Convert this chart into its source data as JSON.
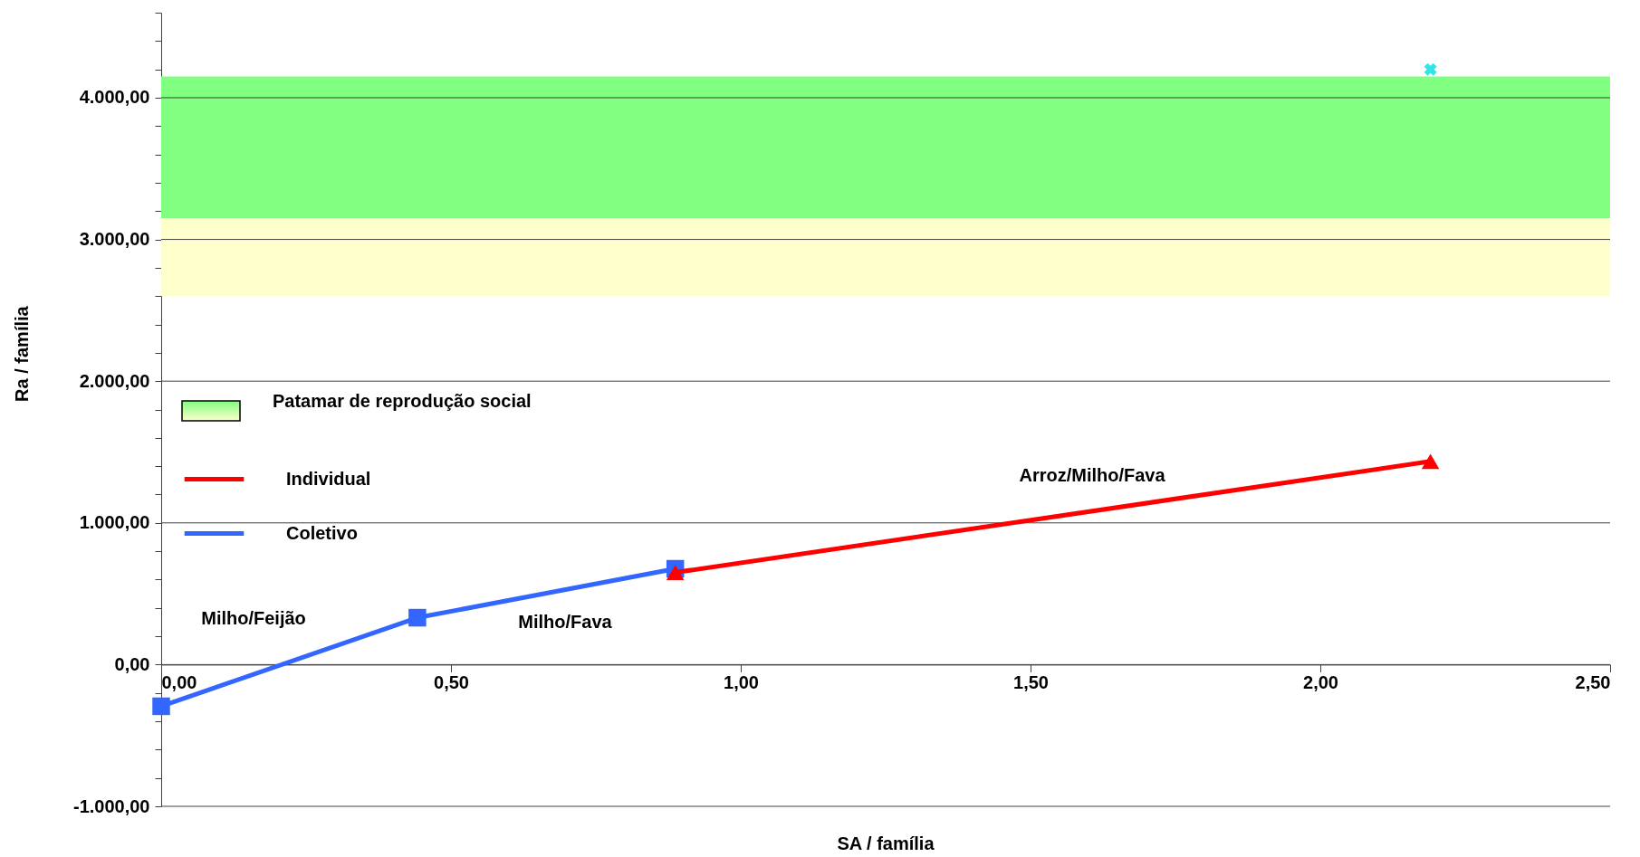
{
  "chart_data": {
    "type": "line",
    "xlabel": "SA / família",
    "ylabel": "Ra / família",
    "xlim": [
      0,
      2.5
    ],
    "ylim": [
      -1000,
      4600
    ],
    "xticks": [
      {
        "value": 0,
        "label": "0,00"
      },
      {
        "value": 0.5,
        "label": "0,50"
      },
      {
        "value": 1,
        "label": "1,00"
      },
      {
        "value": 1.5,
        "label": "1,50"
      },
      {
        "value": 2,
        "label": "2,00"
      },
      {
        "value": 2.5,
        "label": "2,50"
      }
    ],
    "yticks": [
      {
        "value": -1000,
        "label": "-1.000,00"
      },
      {
        "value": -800,
        "label": null
      },
      {
        "value": -600,
        "label": null
      },
      {
        "value": -400,
        "label": null
      },
      {
        "value": -200,
        "label": null
      },
      {
        "value": 0,
        "label": "0,00"
      },
      {
        "value": 200,
        "label": null
      },
      {
        "value": 400,
        "label": null
      },
      {
        "value": 600,
        "label": null
      },
      {
        "value": 800,
        "label": null
      },
      {
        "value": 1000,
        "label": "1.000,00"
      },
      {
        "value": 1200,
        "label": null
      },
      {
        "value": 1400,
        "label": null
      },
      {
        "value": 1600,
        "label": null
      },
      {
        "value": 1800,
        "label": null
      },
      {
        "value": 2000,
        "label": "2.000,00"
      },
      {
        "value": 2200,
        "label": null
      },
      {
        "value": 2400,
        "label": null
      },
      {
        "value": 2600,
        "label": null
      },
      {
        "value": 2800,
        "label": null
      },
      {
        "value": 3000,
        "label": "3.000,00"
      },
      {
        "value": 3200,
        "label": null
      },
      {
        "value": 3400,
        "label": null
      },
      {
        "value": 3600,
        "label": null
      },
      {
        "value": 3800,
        "label": null
      },
      {
        "value": 4000,
        "label": "4.000,00"
      },
      {
        "value": 4200,
        "label": null
      },
      {
        "value": 4400,
        "label": null
      },
      {
        "value": 4600,
        "label": null
      }
    ],
    "grid": "y",
    "legend": "left",
    "line_style": "solid",
    "bands": [
      {
        "axis": "y",
        "from": 3150,
        "to": 4150,
        "label": "Patamar de reprodução social",
        "color": "#80ff80"
      },
      {
        "axis": "y",
        "from": 2600,
        "to": 3150,
        "label": null,
        "color": "#ffffcc"
      }
    ],
    "series": [
      {
        "name": "Individual",
        "color": "#ff0000",
        "marker": "triangle",
        "x": [
          0.887,
          2.19
        ],
        "values": [
          650,
          1434
        ]
      },
      {
        "name": "Coletivo",
        "color": "#3366ff",
        "marker": "square",
        "x": [
          0,
          0.442,
          0.887
        ],
        "values": [
          -294,
          331,
          676
        ]
      },
      {
        "color": "#33e6e6",
        "type": "scatter",
        "marker": "cross",
        "x": [
          2.19
        ],
        "values": [
          4200
        ]
      }
    ],
    "annotations": [
      "Milho/Feijão",
      "Milho/Fava",
      "Arroz/Milho/Fava"
    ]
  }
}
